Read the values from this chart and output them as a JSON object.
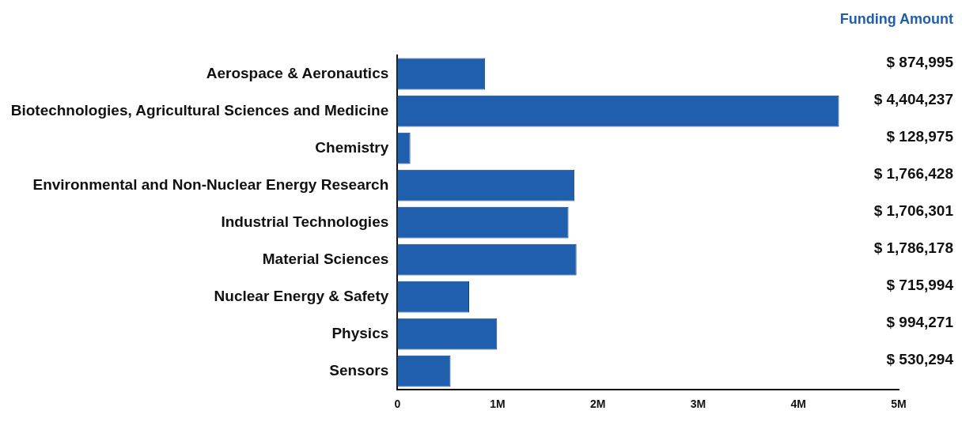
{
  "chart_data": {
    "type": "bar",
    "orientation": "horizontal",
    "categories": [
      "Aerospace & Aeronautics",
      "Biotechnologies, Agricultural Sciences and Medicine",
      "Chemistry",
      "Environmental and Non-Nuclear Energy Research",
      "Industrial Technologies",
      "Material Sciences",
      "Nuclear Energy & Safety",
      "Physics",
      "Sensors"
    ],
    "values": [
      874995,
      4404237,
      128975,
      1766428,
      1706301,
      1786178,
      715994,
      994271,
      530294
    ],
    "value_labels": [
      "$ 874,995",
      "$ 4,404,237",
      "$ 128,975",
      "$ 1,766,428",
      "$ 1,706,301",
      "$ 1,786,178",
      "$ 715,994",
      "$ 994,271",
      "$ 530,294"
    ],
    "color": "#1f5fad",
    "xlim": [
      0,
      5000000
    ],
    "xticks": [
      {
        "value": 0,
        "label": "0"
      },
      {
        "value": 1000000,
        "label": "1M"
      },
      {
        "value": 2000000,
        "label": "2M"
      },
      {
        "value": 3000000,
        "label": "3M"
      },
      {
        "value": 4000000,
        "label": "4M"
      },
      {
        "value": 5000000,
        "label": "5M"
      }
    ],
    "grid": false,
    "legend": false,
    "annotations": [
      "Funding Amount"
    ]
  }
}
